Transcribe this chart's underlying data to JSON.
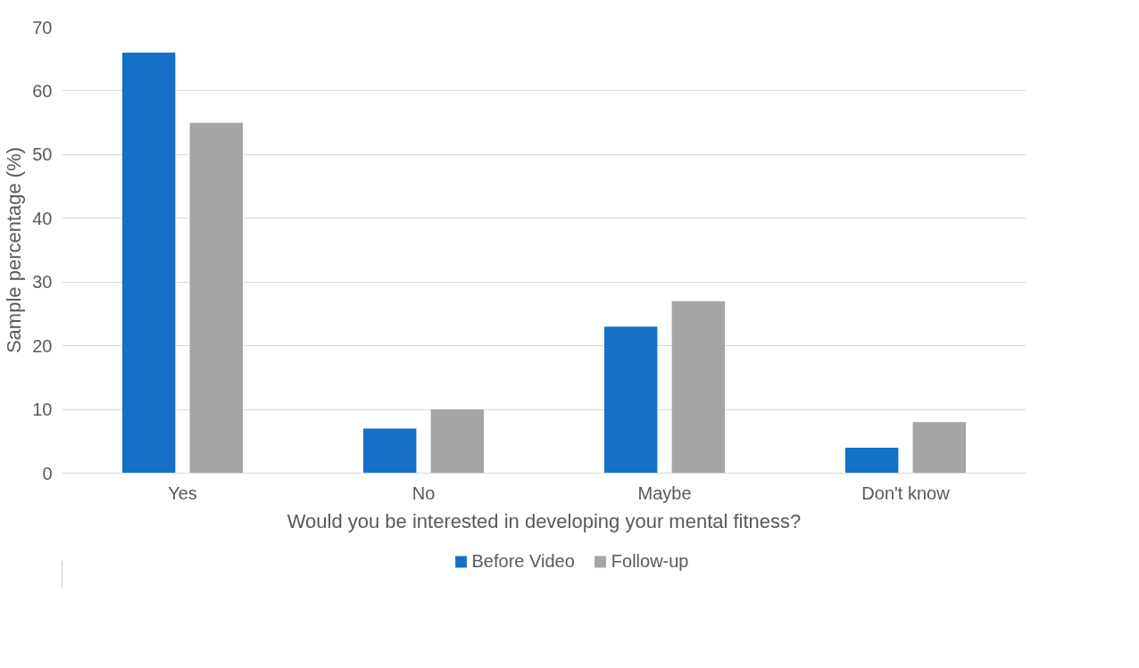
{
  "chart_data": {
    "type": "bar",
    "xlabel": "Would you be interested in developing your mental fitness?",
    "ylabel": "Sample percentage (%)",
    "categories": [
      "Yes",
      "No",
      "Maybe",
      "Don't know"
    ],
    "series": [
      {
        "name": "Before Video",
        "color": "#1570c8",
        "values": [
          66,
          7,
          23,
          4
        ]
      },
      {
        "name": "Follow-up",
        "color": "#a5a5a5",
        "values": [
          55,
          10,
          27,
          8
        ]
      }
    ],
    "ylim": [
      0,
      70
    ],
    "yticks": [
      0,
      10,
      20,
      30,
      40,
      50,
      60,
      70
    ],
    "grid": "y",
    "legend": "bottom"
  }
}
